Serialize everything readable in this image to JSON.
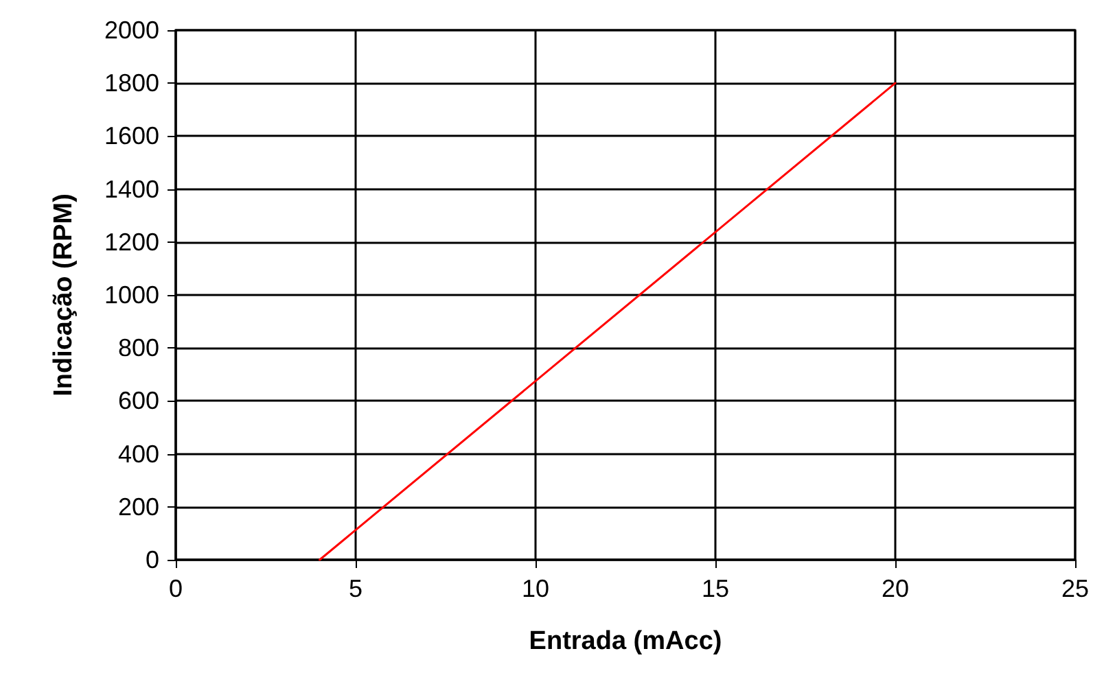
{
  "chart_data": {
    "type": "line",
    "xlabel": "Entrada (mAcc)",
    "ylabel": "Indicação (RPM)",
    "x": [
      4,
      20
    ],
    "series": [
      {
        "color": "#ff0000",
        "values": [
          0,
          1800
        ]
      }
    ],
    "xlim": [
      0,
      25
    ],
    "xticks": [
      0,
      5,
      10,
      15,
      20,
      25
    ],
    "ylim": [
      0,
      2000
    ],
    "yticks": [
      0,
      200,
      400,
      600,
      800,
      1000,
      1200,
      1400,
      1600,
      1800,
      2000
    ],
    "grid": true,
    "marker": "none",
    "line_style": "solid"
  }
}
